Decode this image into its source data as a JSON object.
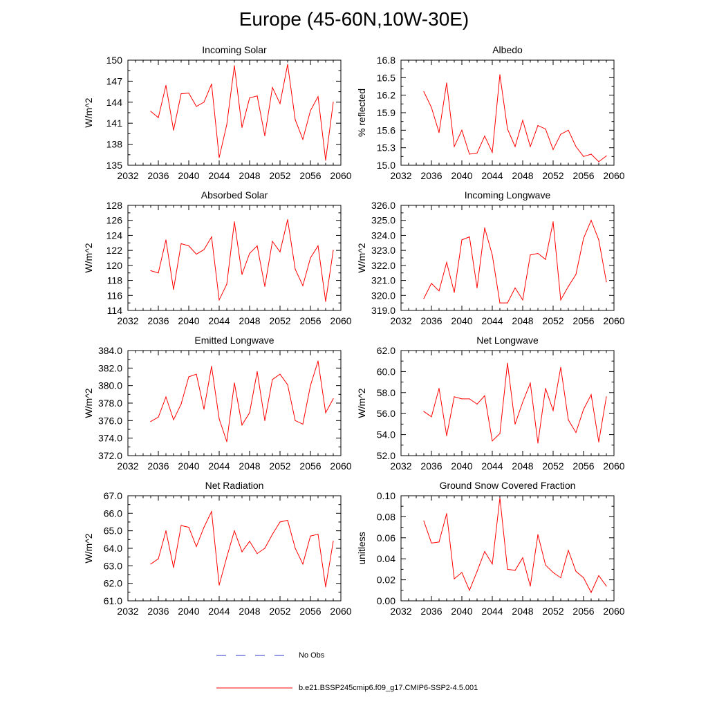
{
  "title": "Europe (45-60N,10W-30E)",
  "colors": {
    "series": "#ff0000",
    "obs": "#3333cc",
    "axis": "#000000",
    "background": "#ffffff"
  },
  "legend": {
    "obs_label": "No Obs",
    "model_label": "b.e21.BSSP245cmip6.f09_g17.CMIP6-SSP2-4.5.001"
  },
  "chart_data": [
    {
      "type": "line",
      "title": "Incoming Solar",
      "ylabel": "W/m^2",
      "xlim": [
        2032,
        2060
      ],
      "ylim": [
        135,
        150
      ],
      "xticks": [
        "2032",
        "2036",
        "2040",
        "2044",
        "2048",
        "2052",
        "2056",
        "2060"
      ],
      "yticks": [
        "135",
        "138",
        "141",
        "144",
        "147",
        "150"
      ],
      "series": [
        {
          "x": [
            2035,
            2036,
            2037,
            2038,
            2039,
            2040,
            2041,
            2042,
            2043,
            2044,
            2045,
            2046,
            2047,
            2048,
            2049,
            2050,
            2051,
            2052,
            2053,
            2054,
            2055,
            2056,
            2057,
            2058,
            2059
          ],
          "values": [
            142.7,
            141.8,
            146.4,
            140.0,
            145.2,
            145.3,
            143.4,
            144.0,
            146.6,
            136.1,
            140.8,
            149.2,
            140.4,
            144.6,
            144.9,
            139.2,
            146.1,
            143.8,
            149.4,
            141.5,
            138.7,
            142.8,
            144.8,
            135.7,
            144.0
          ]
        }
      ]
    },
    {
      "type": "line",
      "title": "Albedo",
      "ylabel": "% reflected",
      "xlim": [
        2032,
        2060
      ],
      "ylim": [
        15.0,
        16.8
      ],
      "xticks": [
        "2032",
        "2036",
        "2040",
        "2044",
        "2048",
        "2052",
        "2056",
        "2060"
      ],
      "yticks": [
        "15.0",
        "15.3",
        "15.6",
        "15.9",
        "16.2",
        "16.5",
        "16.8"
      ],
      "series": [
        {
          "x": [
            2035,
            2036,
            2037,
            2038,
            2039,
            2040,
            2041,
            2042,
            2043,
            2044,
            2045,
            2046,
            2047,
            2048,
            2049,
            2050,
            2051,
            2052,
            2053,
            2054,
            2055,
            2056,
            2057,
            2058,
            2059
          ],
          "values": [
            16.26,
            15.99,
            15.56,
            16.41,
            15.32,
            15.6,
            15.19,
            15.21,
            15.5,
            15.22,
            16.55,
            15.62,
            15.32,
            15.77,
            15.32,
            15.68,
            15.62,
            15.27,
            15.53,
            15.6,
            15.32,
            15.15,
            15.19,
            15.06,
            15.16
          ]
        }
      ]
    },
    {
      "type": "line",
      "title": "Absorbed Solar",
      "ylabel": "W/m^2",
      "xlim": [
        2032,
        2060
      ],
      "ylim": [
        114,
        128
      ],
      "xticks": [
        "2032",
        "2036",
        "2040",
        "2044",
        "2048",
        "2052",
        "2056",
        "2060"
      ],
      "yticks": [
        "114",
        "116",
        "118",
        "120",
        "122",
        "124",
        "126",
        "128"
      ],
      "series": [
        {
          "x": [
            2035,
            2036,
            2037,
            2038,
            2039,
            2040,
            2041,
            2042,
            2043,
            2044,
            2045,
            2046,
            2047,
            2048,
            2049,
            2050,
            2051,
            2052,
            2053,
            2054,
            2055,
            2056,
            2057,
            2058,
            2059
          ],
          "values": [
            119.3,
            119.0,
            123.4,
            116.8,
            122.9,
            122.6,
            121.5,
            122.1,
            123.8,
            115.4,
            117.5,
            125.8,
            118.8,
            121.6,
            122.6,
            117.2,
            123.2,
            121.8,
            126.1,
            119.5,
            117.3,
            121.0,
            122.6,
            115.2,
            122.0
          ]
        }
      ]
    },
    {
      "type": "line",
      "title": "Incoming Longwave",
      "ylabel": "W/m^2",
      "xlim": [
        2032,
        2060
      ],
      "ylim": [
        319.0,
        326.0
      ],
      "xticks": [
        "2032",
        "2036",
        "2040",
        "2044",
        "2048",
        "2052",
        "2056",
        "2060"
      ],
      "yticks": [
        "319.0",
        "320.0",
        "321.0",
        "322.0",
        "323.0",
        "324.0",
        "325.0",
        "326.0"
      ],
      "series": [
        {
          "x": [
            2035,
            2036,
            2037,
            2038,
            2039,
            2040,
            2041,
            2042,
            2043,
            2044,
            2045,
            2046,
            2047,
            2048,
            2049,
            2050,
            2051,
            2052,
            2053,
            2054,
            2055,
            2056,
            2057,
            2058,
            2059
          ],
          "values": [
            319.8,
            320.8,
            320.3,
            322.2,
            320.2,
            323.7,
            323.9,
            320.5,
            324.5,
            322.7,
            319.5,
            319.5,
            320.5,
            319.7,
            322.7,
            322.8,
            322.4,
            324.9,
            319.7,
            320.6,
            321.4,
            323.8,
            325.0,
            323.7,
            320.9
          ]
        }
      ]
    },
    {
      "type": "line",
      "title": "Emitted Longwave",
      "ylabel": "W/m^2",
      "xlim": [
        2032,
        2060
      ],
      "ylim": [
        372.0,
        384.0
      ],
      "xticks": [
        "2032",
        "2036",
        "2040",
        "2044",
        "2048",
        "2052",
        "2056",
        "2060"
      ],
      "yticks": [
        "372.0",
        "374.0",
        "376.0",
        "378.0",
        "380.0",
        "382.0",
        "384.0"
      ],
      "series": [
        {
          "x": [
            2035,
            2036,
            2037,
            2038,
            2039,
            2040,
            2041,
            2042,
            2043,
            2044,
            2045,
            2046,
            2047,
            2048,
            2049,
            2050,
            2051,
            2052,
            2053,
            2054,
            2055,
            2056,
            2057,
            2058,
            2059
          ],
          "values": [
            375.9,
            376.4,
            378.7,
            376.1,
            377.9,
            381.0,
            381.3,
            377.3,
            382.2,
            376.2,
            373.6,
            380.3,
            375.5,
            376.9,
            381.6,
            376.0,
            380.7,
            381.3,
            380.1,
            376.0,
            375.6,
            380.0,
            382.8,
            376.9,
            378.5
          ]
        }
      ]
    },
    {
      "type": "line",
      "title": "Net Longwave",
      "ylabel": "W/m^2",
      "xlim": [
        2032,
        2060
      ],
      "ylim": [
        52.0,
        62.0
      ],
      "xticks": [
        "2032",
        "2036",
        "2040",
        "2044",
        "2048",
        "2052",
        "2056",
        "2060"
      ],
      "yticks": [
        "52.0",
        "54.0",
        "56.0",
        "58.0",
        "60.0",
        "62.0"
      ],
      "series": [
        {
          "x": [
            2035,
            2036,
            2037,
            2038,
            2039,
            2040,
            2041,
            2042,
            2043,
            2044,
            2045,
            2046,
            2047,
            2048,
            2049,
            2050,
            2051,
            2052,
            2053,
            2054,
            2055,
            2056,
            2057,
            2058,
            2059
          ],
          "values": [
            56.2,
            55.7,
            58.4,
            53.9,
            57.6,
            57.4,
            57.4,
            56.9,
            57.7,
            53.4,
            54.1,
            60.8,
            55.0,
            57.1,
            58.9,
            53.2,
            58.4,
            56.3,
            60.4,
            55.4,
            54.2,
            56.4,
            57.8,
            53.3,
            57.6
          ]
        }
      ]
    },
    {
      "type": "line",
      "title": "Net Radiation",
      "ylabel": "W/m^2",
      "xlim": [
        2032,
        2060
      ],
      "ylim": [
        61.0,
        67.0
      ],
      "xticks": [
        "2032",
        "2036",
        "2040",
        "2044",
        "2048",
        "2052",
        "2056",
        "2060"
      ],
      "yticks": [
        "61.0",
        "62.0",
        "63.0",
        "64.0",
        "65.0",
        "66.0",
        "67.0"
      ],
      "series": [
        {
          "x": [
            2035,
            2036,
            2037,
            2038,
            2039,
            2040,
            2041,
            2042,
            2043,
            2044,
            2045,
            2046,
            2047,
            2048,
            2049,
            2050,
            2051,
            2052,
            2053,
            2054,
            2055,
            2056,
            2057,
            2058,
            2059
          ],
          "values": [
            63.1,
            63.4,
            65.0,
            62.9,
            65.3,
            65.2,
            64.1,
            65.2,
            66.1,
            61.9,
            63.5,
            65.0,
            63.8,
            64.4,
            63.7,
            64.0,
            64.8,
            65.5,
            65.6,
            64.0,
            63.1,
            64.7,
            64.8,
            61.8,
            64.4
          ]
        }
      ]
    },
    {
      "type": "line",
      "title": "Ground Snow Covered Fraction",
      "ylabel": "unitless",
      "xlim": [
        2032,
        2060
      ],
      "ylim": [
        0.0,
        0.1
      ],
      "xticks": [
        "2032",
        "2036",
        "2040",
        "2044",
        "2048",
        "2052",
        "2056",
        "2060"
      ],
      "yticks": [
        "0.00",
        "0.02",
        "0.04",
        "0.06",
        "0.08",
        "0.10"
      ],
      "series": [
        {
          "x": [
            2035,
            2036,
            2037,
            2038,
            2039,
            2040,
            2041,
            2042,
            2043,
            2044,
            2045,
            2046,
            2047,
            2048,
            2049,
            2050,
            2051,
            2052,
            2053,
            2054,
            2055,
            2056,
            2057,
            2058,
            2059
          ],
          "values": [
            0.076,
            0.055,
            0.056,
            0.083,
            0.021,
            0.027,
            0.01,
            0.028,
            0.047,
            0.035,
            0.098,
            0.03,
            0.029,
            0.041,
            0.014,
            0.063,
            0.034,
            0.027,
            0.022,
            0.048,
            0.028,
            0.022,
            0.008,
            0.024,
            0.014
          ]
        }
      ]
    }
  ]
}
